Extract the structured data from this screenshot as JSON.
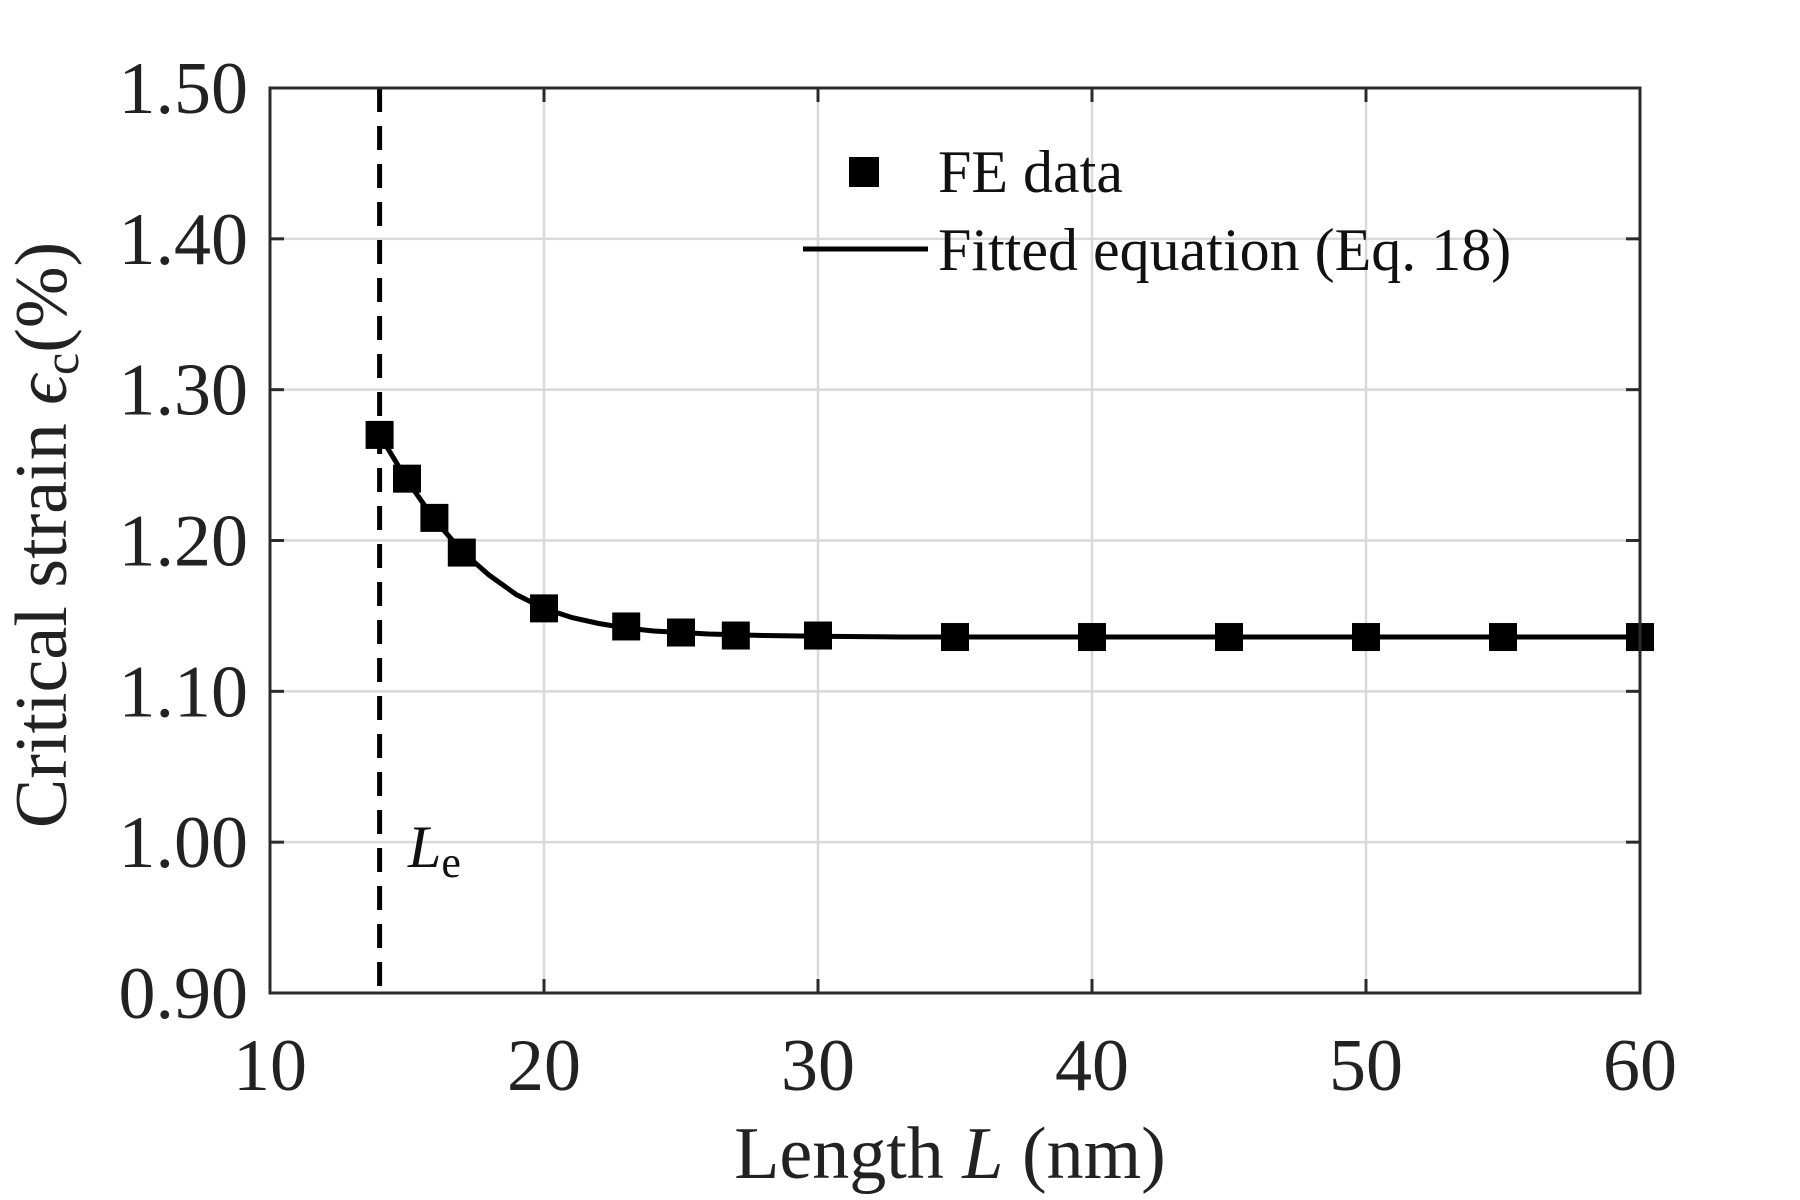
{
  "chart_data": {
    "type": "line",
    "xlabel": {
      "pre": "Length ",
      "var": "L",
      "post": " (nm)"
    },
    "ylabel": {
      "pre": "Critical strain ",
      "var": "ϵ",
      "sub": "c",
      "post": "(%)"
    },
    "xlim": [
      10,
      60
    ],
    "ylim": [
      0.9,
      1.5
    ],
    "xticks": [
      10,
      20,
      30,
      40,
      50,
      60
    ],
    "xtick_labels": [
      "10",
      "20",
      "30",
      "40",
      "50",
      "60"
    ],
    "yticks": [
      0.9,
      1.0,
      1.1,
      1.2,
      1.3,
      1.4,
      1.5
    ],
    "ytick_labels": [
      "0.90",
      "1.00",
      "1.10",
      "1.20",
      "1.30",
      "1.40",
      "1.50"
    ],
    "grid": true,
    "legend_position": "top-right",
    "series": [
      {
        "name": "FE data",
        "style": "markers",
        "marker": "square",
        "color": "#000000",
        "x": [
          14,
          15,
          16,
          17,
          20,
          23,
          25,
          27,
          30,
          35,
          40,
          45,
          50,
          55,
          60
        ],
        "y": [
          1.27,
          1.241,
          1.215,
          1.192,
          1.155,
          1.143,
          1.139,
          1.137,
          1.137,
          1.136,
          1.136,
          1.136,
          1.136,
          1.136,
          1.136
        ]
      },
      {
        "name": "Fitted equation (Eq. 18)",
        "style": "line",
        "color": "#000000",
        "x": [
          14,
          15,
          16,
          17,
          18,
          19,
          20,
          21,
          22,
          23,
          24,
          25,
          26,
          27,
          28,
          30,
          33,
          35,
          40,
          45,
          50,
          55,
          60
        ],
        "y": [
          1.27,
          1.24,
          1.214,
          1.193,
          1.177,
          1.164,
          1.155,
          1.149,
          1.145,
          1.142,
          1.14,
          1.139,
          1.138,
          1.1375,
          1.137,
          1.1365,
          1.136,
          1.136,
          1.136,
          1.136,
          1.136,
          1.136,
          1.136
        ]
      }
    ],
    "annotations": [
      {
        "type": "vline",
        "x": 14,
        "dash": true,
        "label_var": "L",
        "label_sub": "e"
      }
    ]
  }
}
